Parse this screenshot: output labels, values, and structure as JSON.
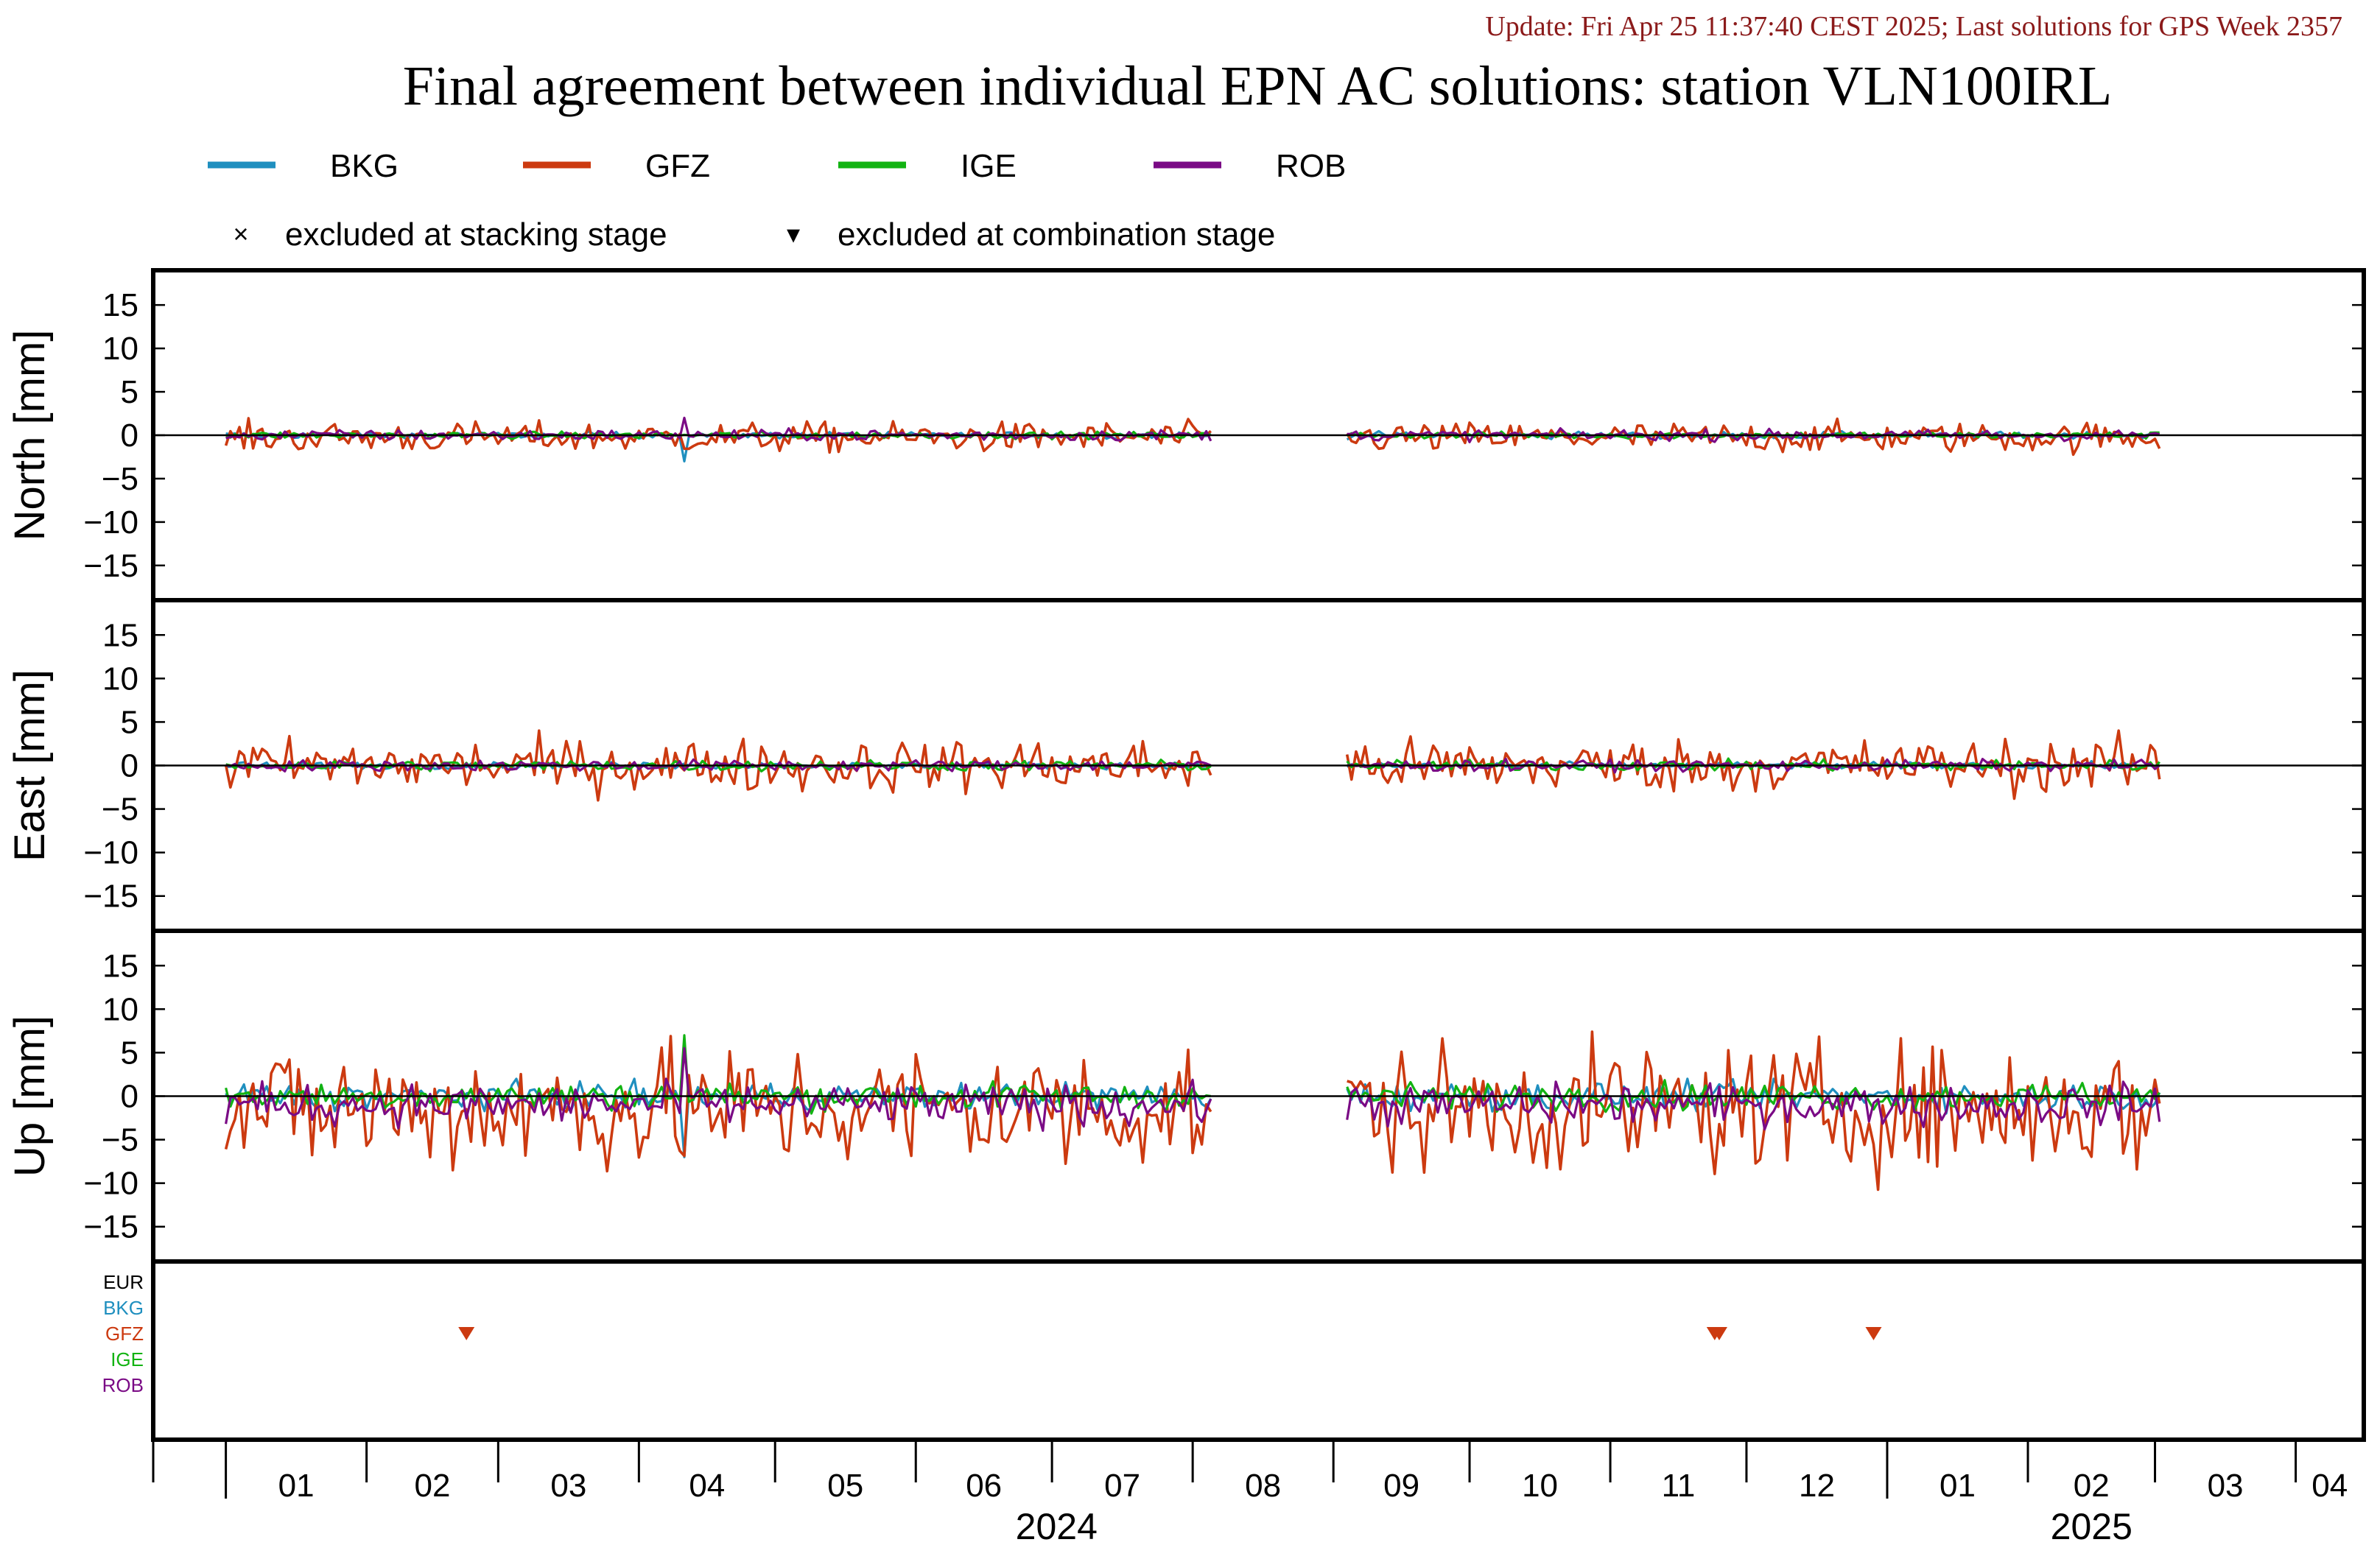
{
  "update_text": "Update: Fri Apr 25 11:37:40 CEST 2025; Last solutions for GPS Week 2357",
  "title": "Final agreement between individual EPN AC solutions: station VLN100IRL",
  "legend": {
    "series": [
      {
        "name": "BKG",
        "color": "#1f8fbf"
      },
      {
        "name": "GFZ",
        "color": "#cc3a10"
      },
      {
        "name": "IGE",
        "color": "#12b312"
      },
      {
        "name": "ROB",
        "color": "#7a0a85"
      }
    ],
    "markers": [
      {
        "symbol": "×",
        "label": "excluded at stacking stage"
      },
      {
        "symbol": "▾",
        "label": "excluded at combination stage"
      }
    ]
  },
  "chart_data": {
    "type": "line",
    "x_axis": {
      "range": [
        "2023-12-16",
        "2025-04-16"
      ],
      "month_ticks": [
        "01",
        "02",
        "03",
        "04",
        "05",
        "06",
        "07",
        "08",
        "09",
        "10",
        "11",
        "12",
        "01",
        "02",
        "03",
        "04"
      ],
      "year_labels": [
        "2024",
        "2025"
      ]
    },
    "panels": [
      {
        "id": "north",
        "ylabel": "North [mm]",
        "ylim": [
          -19,
          19
        ],
        "yticks": [
          15,
          10,
          5,
          0,
          -5,
          -10,
          -15
        ]
      },
      {
        "id": "east",
        "ylabel": "East [mm]",
        "ylim": [
          -19,
          19
        ],
        "yticks": [
          15,
          10,
          5,
          0,
          -5,
          -10,
          -15
        ]
      },
      {
        "id": "up",
        "ylabel": "Up [mm]",
        "ylim": [
          -19,
          19
        ],
        "yticks": [
          15,
          10,
          5,
          0,
          -5,
          -10,
          -15
        ]
      }
    ],
    "series_data_periods": [
      [
        "2024-01-01",
        "2024-08-05"
      ],
      [
        "2024-09-04",
        "2025-03-02"
      ]
    ],
    "series_summary": {
      "north": {
        "BKG": {
          "typical_range": [
            -0.5,
            0.5
          ],
          "extreme": {
            "date": "2024-04-11",
            "value": -3.0
          }
        },
        "GFZ": {
          "typical_range": [
            -2.5,
            2.0
          ]
        },
        "IGE": {
          "typical_range": [
            -0.5,
            0.5
          ]
        },
        "ROB": {
          "typical_range": [
            -0.8,
            0.8
          ],
          "extreme": {
            "date": "2024-04-11",
            "value": 2.0
          }
        }
      },
      "east": {
        "BKG": {
          "typical_range": [
            -0.5,
            0.5
          ]
        },
        "GFZ": {
          "typical_range": [
            -4.0,
            4.0
          ]
        },
        "IGE": {
          "typical_range": [
            -0.8,
            0.8
          ]
        },
        "ROB": {
          "typical_range": [
            -0.8,
            0.8
          ]
        }
      },
      "up": {
        "BKG": {
          "typical_range": [
            -2.0,
            2.0
          ],
          "extreme": {
            "date": "2024-04-11",
            "value": -7.0
          }
        },
        "GFZ": {
          "typical_range": [
            -11.0,
            8.0
          ]
        },
        "IGE": {
          "typical_range": [
            -2.0,
            2.0
          ],
          "extreme": {
            "date": "2024-04-11",
            "value": 7.0
          }
        },
        "ROB": {
          "typical_range": [
            -4.0,
            2.0
          ],
          "extreme": {
            "date": "2024-04-11",
            "value": 5.5
          }
        }
      }
    },
    "exclusion_panel": {
      "rows": [
        {
          "name": "EUR",
          "color": "#000000"
        },
        {
          "name": "BKG",
          "color": "#1f8fbf"
        },
        {
          "name": "GFZ",
          "color": "#cc3a10"
        },
        {
          "name": "IGE",
          "color": "#12b312"
        },
        {
          "name": "ROB",
          "color": "#7a0a85"
        }
      ],
      "combination_exclusions": [
        {
          "ac": "GFZ",
          "date": "2024-02-23"
        },
        {
          "ac": "GFZ",
          "date": "2024-11-24"
        },
        {
          "ac": "GFZ",
          "date": "2024-11-25"
        },
        {
          "ac": "GFZ",
          "date": "2024-12-29"
        }
      ]
    }
  }
}
